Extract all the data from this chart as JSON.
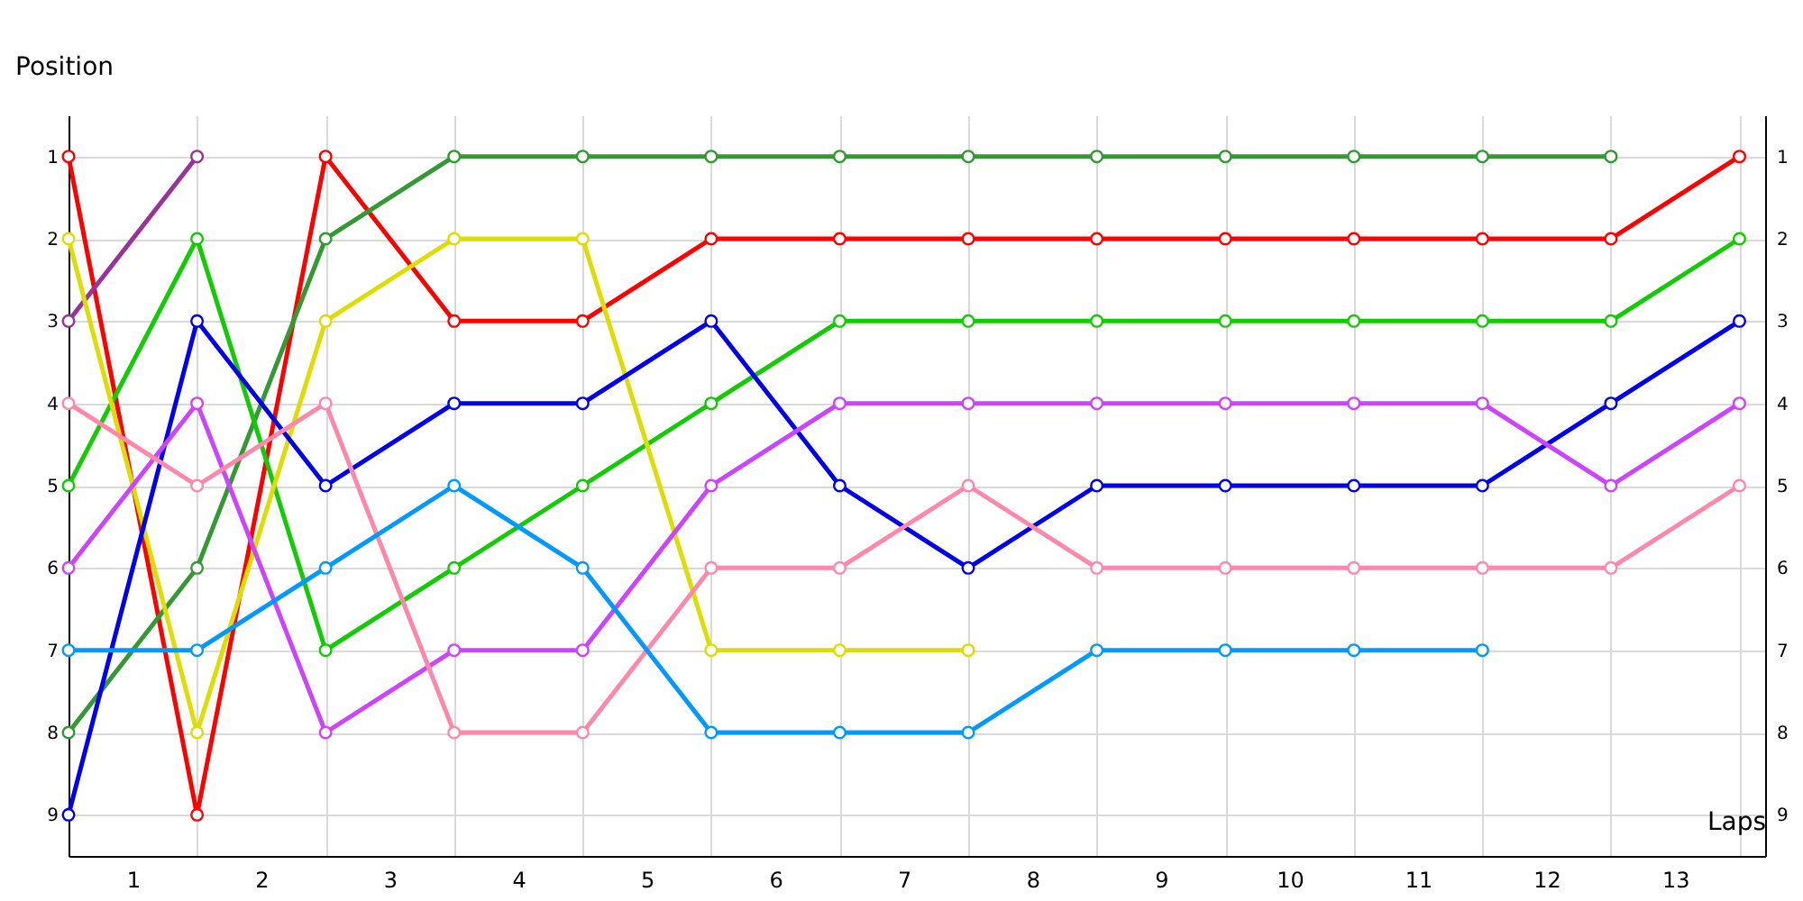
{
  "chart_data": {
    "type": "line",
    "xlabel": "Laps",
    "ylabel": "Position",
    "x": [
      0,
      1,
      2,
      3,
      4,
      5,
      6,
      7,
      8,
      9,
      10,
      11,
      12,
      13
    ],
    "xlim": [
      0,
      13.2
    ],
    "xticks": [
      {
        "value": 0,
        "label": null
      },
      {
        "value": 0.5,
        "label": "1"
      },
      {
        "value": 1,
        "label": null
      },
      {
        "value": 1.5,
        "label": "2"
      },
      {
        "value": 2,
        "label": null
      },
      {
        "value": 2.5,
        "label": "3"
      },
      {
        "value": 3,
        "label": null
      },
      {
        "value": 3.5,
        "label": "4"
      },
      {
        "value": 4,
        "label": null
      },
      {
        "value": 4.5,
        "label": "5"
      },
      {
        "value": 5,
        "label": null
      },
      {
        "value": 5.5,
        "label": "6"
      },
      {
        "value": 6,
        "label": null
      },
      {
        "value": 6.5,
        "label": "7"
      },
      {
        "value": 7,
        "label": null
      },
      {
        "value": 7.5,
        "label": "8"
      },
      {
        "value": 8,
        "label": null
      },
      {
        "value": 8.5,
        "label": "9"
      },
      {
        "value": 9,
        "label": null
      },
      {
        "value": 9.5,
        "label": "10"
      },
      {
        "value": 10,
        "label": null
      },
      {
        "value": 10.5,
        "label": "11"
      },
      {
        "value": 11,
        "label": null
      },
      {
        "value": 11.5,
        "label": "12"
      },
      {
        "value": 12,
        "label": null
      },
      {
        "value": 12.5,
        "label": "13"
      },
      {
        "value": 13,
        "label": null
      }
    ],
    "ylim": [
      9.5,
      0.5
    ],
    "yticks": [
      1,
      2,
      3,
      4,
      5,
      6,
      7,
      8,
      9
    ],
    "y2lim": [
      9.5,
      0.5
    ],
    "y2ticks": [
      1,
      2,
      3,
      4,
      5,
      6,
      7,
      8,
      9
    ],
    "grid": true,
    "marker": "circle",
    "line_style": "solid",
    "legend": false,
    "series": [
      {
        "color": "#ff0000",
        "values": [
          1,
          9,
          1,
          3,
          3,
          2,
          2,
          2,
          2,
          2,
          2,
          2,
          2,
          1
        ]
      },
      {
        "color": "#993399",
        "values": [
          3,
          1,
          null,
          null,
          null,
          null,
          null,
          null,
          null,
          null,
          null,
          null,
          null,
          null
        ]
      },
      {
        "color": "#339933",
        "values": [
          8,
          6,
          2,
          1,
          1,
          1,
          1,
          1,
          1,
          1,
          1,
          1,
          1,
          null
        ]
      },
      {
        "color": "#11cc00",
        "values": [
          5,
          2,
          7,
          6,
          5,
          4,
          3,
          3,
          3,
          3,
          3,
          3,
          3,
          2
        ]
      },
      {
        "color": "#dddd00",
        "values": [
          2,
          8,
          3,
          2,
          2,
          7,
          7,
          7,
          null,
          null,
          null,
          null,
          null,
          null
        ]
      },
      {
        "color": "#0000ee",
        "values": [
          9,
          3,
          5,
          4,
          4,
          3,
          5,
          6,
          5,
          5,
          5,
          5,
          4,
          3
        ]
      },
      {
        "color": "#cc44ff",
        "values": [
          6,
          4,
          8,
          7,
          7,
          5,
          4,
          4,
          4,
          4,
          4,
          4,
          5,
          4
        ]
      },
      {
        "color": "#ff88aa",
        "values": [
          4,
          5,
          4,
          8,
          8,
          6,
          6,
          5,
          6,
          6,
          6,
          6,
          6,
          5
        ]
      },
      {
        "color": "#0099ff",
        "values": [
          7,
          7,
          6,
          5,
          6,
          8,
          8,
          8,
          7,
          7,
          7,
          7,
          null,
          null
        ]
      }
    ]
  }
}
